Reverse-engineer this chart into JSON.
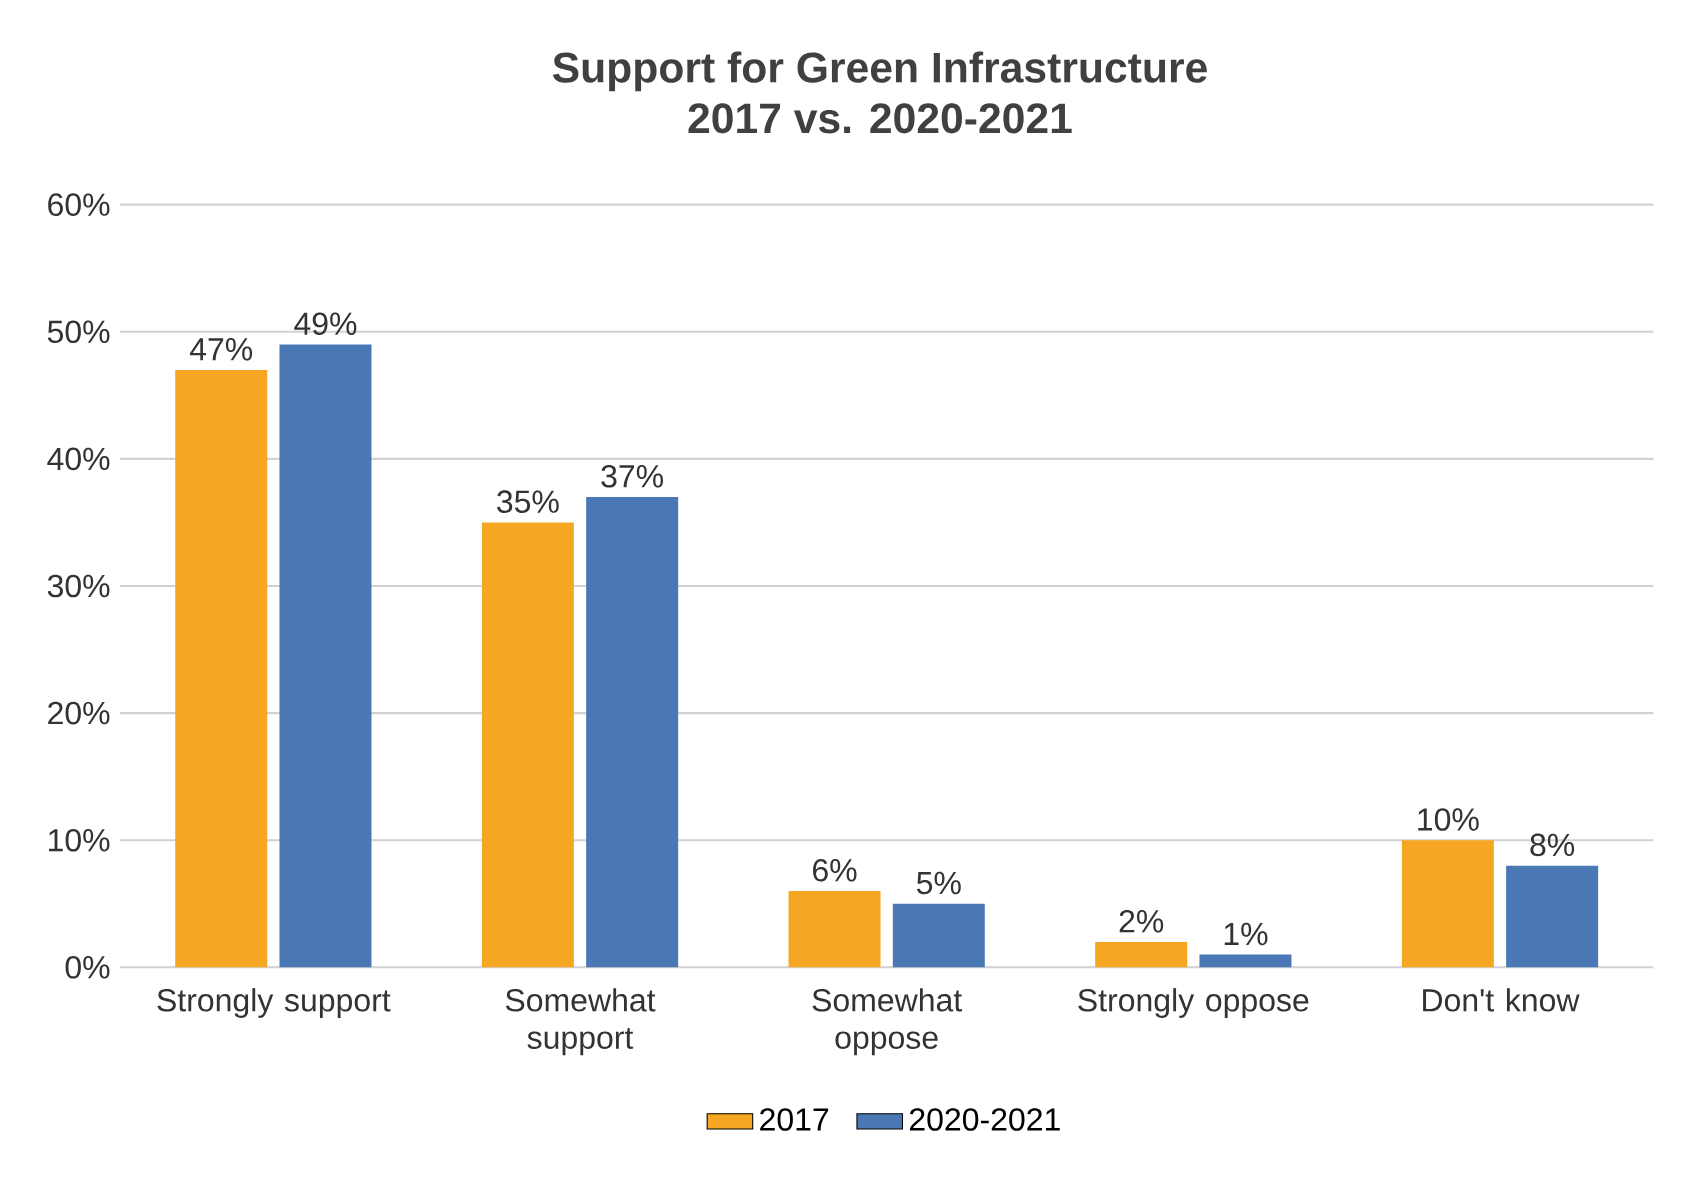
{
  "chart_data": {
    "type": "bar",
    "title": "Support for Green Infrastructure",
    "subtitle": "2017 vs. 2020-2021",
    "categories": [
      "Strongly support",
      "Somewhat support",
      "Somewhat oppose",
      "Strongly oppose",
      "Don't know"
    ],
    "series": [
      {
        "name": "2017",
        "color": "#f5a623",
        "values": [
          47,
          35,
          6,
          2,
          10
        ],
        "value_labels": [
          "47%",
          "35%",
          "6%",
          "2%",
          "10%"
        ]
      },
      {
        "name": "2020-2021",
        "color": "#4a78b5",
        "values": [
          49,
          37,
          5,
          1,
          8
        ],
        "value_labels": [
          "49%",
          "37%",
          "5%",
          "1%",
          "8%"
        ]
      }
    ],
    "ylim": [
      0,
      60
    ],
    "yticks": [
      {
        "value": 0,
        "label": "0%"
      },
      {
        "value": 10,
        "label": "10%"
      },
      {
        "value": 20,
        "label": "20%"
      },
      {
        "value": 30,
        "label": "30%"
      },
      {
        "value": 40,
        "label": "40%"
      },
      {
        "value": 50,
        "label": "50%"
      },
      {
        "value": 60,
        "label": "60%"
      }
    ],
    "grid": "y",
    "legend": "bottom"
  }
}
